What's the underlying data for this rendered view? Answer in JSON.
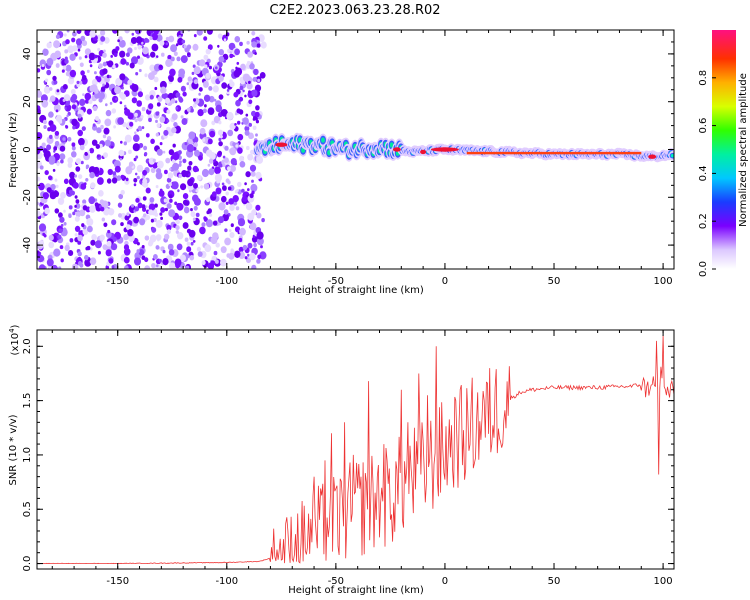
{
  "title": "C2E2.2023.063.23.28.R02",
  "chart_data": [
    {
      "type": "heatmap",
      "xlabel": "Height of straight line (km)",
      "ylabel": "Frequency (Hz)",
      "xlim": [
        -187,
        105
      ],
      "ylim": [
        -50,
        50
      ],
      "xticks": [
        -150,
        -100,
        -50,
        0,
        50,
        100
      ],
      "yticks": [
        -40,
        -20,
        0,
        20,
        40
      ],
      "colorbar": {
        "label": "Normalized spectral amplitude",
        "range": [
          0,
          1
        ],
        "ticks": [
          "0.0",
          "0.2",
          "0.4",
          "0.6",
          "0.8"
        ]
      },
      "signal_track": [
        {
          "x": -85,
          "f": 0
        },
        {
          "x": -75,
          "f": 2
        },
        {
          "x": -60,
          "f": 2
        },
        {
          "x": -45,
          "f": 0
        },
        {
          "x": -30,
          "f": 1
        },
        {
          "x": -15,
          "f": -1
        },
        {
          "x": 0,
          "f": 0
        },
        {
          "x": 25,
          "f": -1
        },
        {
          "x": 50,
          "f": -2
        },
        {
          "x": 80,
          "f": -2
        },
        {
          "x": 95,
          "f": -3
        },
        {
          "x": 105,
          "f": -2
        }
      ],
      "noise_region_x": [
        -187,
        -85
      ]
    },
    {
      "type": "line",
      "xlabel": "Height of straight line (km)",
      "ylabel": "SNR (10 * v/v)",
      "y_multiplier": "(x10",
      "y_multiplier_exp": "4",
      "y_multiplier_close": ")",
      "xlim": [
        -187,
        105
      ],
      "ylim": [
        -0.05,
        2.15
      ],
      "xticks": [
        -150,
        -100,
        -50,
        0,
        50,
        100
      ],
      "yticks": [
        "0.0",
        "0.5",
        "1.0",
        "1.5",
        "2.0"
      ],
      "series": [
        {
          "color": "#ee3333",
          "x": [
            -187,
            -150,
            -100,
            -85,
            -80,
            -75,
            -70,
            -65,
            -60,
            -55,
            -50,
            -45,
            -40,
            -35,
            -30,
            -25,
            -20,
            -15,
            -10,
            -5,
            0,
            5,
            10,
            15,
            20,
            25,
            30,
            35,
            40,
            50,
            60,
            70,
            80,
            85,
            90,
            93,
            95,
            97,
            99,
            100,
            102,
            105
          ],
          "y": [
            0.0,
            0.0,
            0.01,
            0.02,
            0.05,
            0.1,
            0.18,
            0.25,
            0.3,
            0.38,
            0.4,
            0.45,
            0.52,
            0.55,
            0.6,
            0.62,
            0.72,
            0.8,
            0.85,
            0.95,
            1.05,
            1.15,
            1.2,
            1.3,
            1.35,
            1.45,
            1.52,
            1.58,
            1.6,
            1.62,
            1.62,
            1.62,
            1.63,
            1.63,
            1.65,
            1.6,
            1.7,
            1.55,
            1.75,
            1.6,
            1.58,
            1.58
          ]
        }
      ],
      "spikes": [
        {
          "x": -72,
          "y": 0.3
        },
        {
          "x": -60,
          "y": 0.8
        },
        {
          "x": -55,
          "y": 0.95
        },
        {
          "x": -52,
          "y": 1.2
        },
        {
          "x": -46,
          "y": 1.3
        },
        {
          "x": -42,
          "y": 1.0
        },
        {
          "x": -35,
          "y": 1.68
        },
        {
          "x": -28,
          "y": 1.1
        },
        {
          "x": -20,
          "y": 1.6
        },
        {
          "x": -17,
          "y": 1.3
        },
        {
          "x": -12,
          "y": 1.75
        },
        {
          "x": -8,
          "y": 1.55
        },
        {
          "x": -4,
          "y": 2.0
        },
        {
          "x": 5,
          "y": 1.5
        },
        {
          "x": 12,
          "y": 1.45
        },
        {
          "x": 18,
          "y": 1.5
        },
        {
          "x": 97,
          "y": 2.05
        },
        {
          "x": 98,
          "y": 0.82
        },
        {
          "x": 100,
          "y": 2.1
        }
      ]
    }
  ]
}
